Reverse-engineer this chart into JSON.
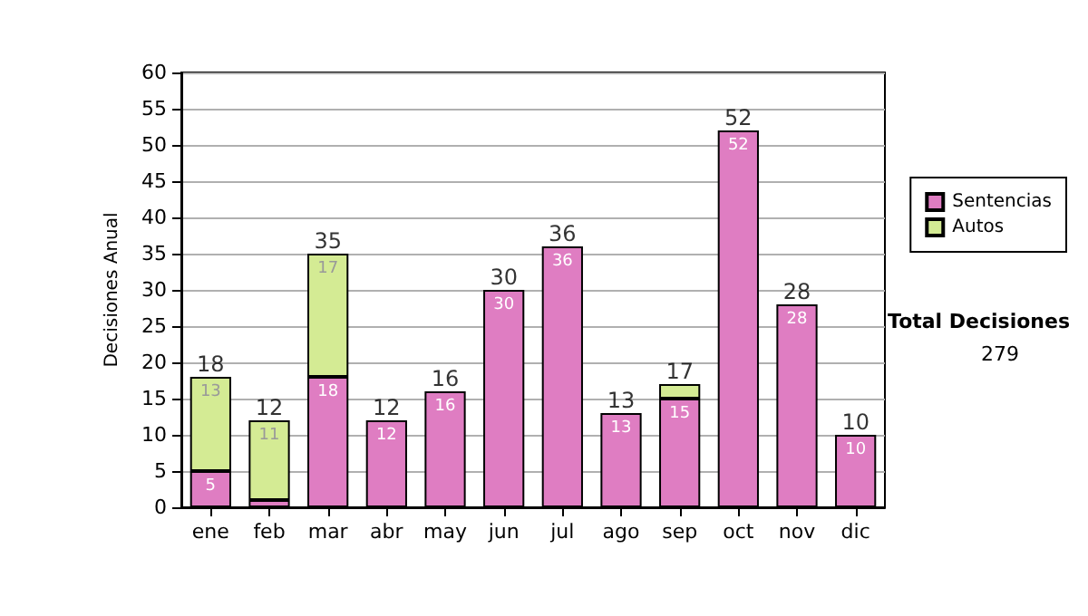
{
  "chart_data": {
    "type": "bar",
    "stacked": true,
    "ylabel": "Decisiones Anual",
    "categories": [
      "ene",
      "feb",
      "mar",
      "abr",
      "may",
      "jun",
      "jul",
      "ago",
      "sep",
      "oct",
      "nov",
      "dic"
    ],
    "series": [
      {
        "name": "Sentencias",
        "color": "#df7dc2",
        "values": [
          5,
          1,
          18,
          12,
          16,
          30,
          36,
          13,
          15,
          52,
          28,
          10
        ],
        "value_labels": [
          "5",
          null,
          "18",
          "12",
          "16",
          "30",
          "36",
          "13",
          "15",
          "52",
          "28",
          "10"
        ]
      },
      {
        "name": "Autos",
        "color": "#d4eb94",
        "values": [
          13,
          11,
          17,
          0,
          0,
          0,
          0,
          0,
          2,
          0,
          0,
          0
        ],
        "value_labels": [
          "13",
          "11",
          "17",
          null,
          null,
          null,
          null,
          null,
          null,
          null,
          null,
          null
        ]
      }
    ],
    "totals": [
      "18",
      "12",
      "35",
      "12",
      "16",
      "30",
      "36",
      "13",
      "17",
      "52",
      "28",
      "10"
    ],
    "ylim": [
      0,
      60
    ],
    "yticks": [
      0,
      5,
      10,
      15,
      20,
      25,
      30,
      35,
      40,
      45,
      50,
      55,
      60
    ],
    "grid": "y",
    "legend": "right",
    "annotations": [
      "Total Decisiones",
      "279"
    ]
  }
}
